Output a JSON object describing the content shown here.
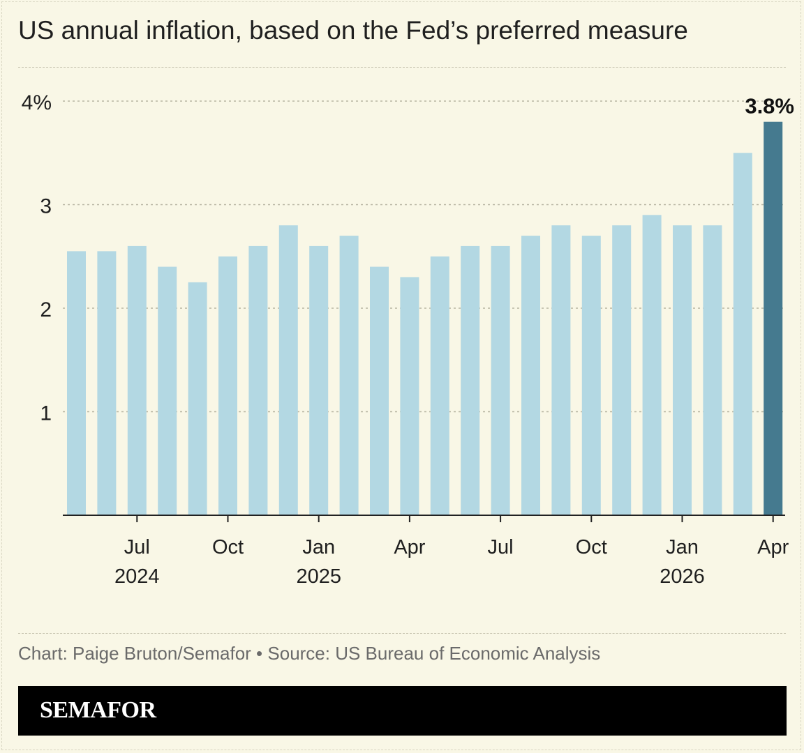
{
  "title": "US annual inflation, based on the Fed’s preferred measure",
  "credit": "Chart: Paige Bruton/Semafor • Source: US Bureau of Economic Analysis",
  "brand": "SEMAFOR",
  "colors": {
    "background": "#f9f7e6",
    "bar": "#b3d8e3",
    "bar_highlight": "#457a8f",
    "text": "#1f1f1f",
    "muted_text": "#6a6a6a",
    "gridline": "#b8b5a2"
  },
  "chart_data": {
    "type": "bar",
    "categories": [
      "May 2024",
      "Jun 2024",
      "Jul 2024",
      "Aug 2024",
      "Sep 2024",
      "Oct 2024",
      "Nov 2024",
      "Dec 2024",
      "Jan 2025",
      "Feb 2025",
      "Mar 2025",
      "Apr 2025",
      "May 2025",
      "Jun 2025",
      "Jul 2025",
      "Aug 2025",
      "Sep 2025",
      "Oct 2025",
      "Nov 2025",
      "Dec 2025",
      "Jan 2026",
      "Feb 2026",
      "Mar 2026",
      "Apr 2026"
    ],
    "values": [
      2.55,
      2.55,
      2.6,
      2.4,
      2.25,
      2.5,
      2.6,
      2.8,
      2.6,
      2.7,
      2.4,
      2.3,
      2.5,
      2.6,
      2.6,
      2.7,
      2.8,
      2.7,
      2.8,
      2.9,
      2.8,
      2.8,
      3.5,
      3.8
    ],
    "highlight_index": 23,
    "annotation": "3.8%",
    "ylim": [
      0,
      4
    ],
    "yticks": [
      {
        "value": 1,
        "label": "1"
      },
      {
        "value": 2,
        "label": "2"
      },
      {
        "value": 3,
        "label": "3"
      },
      {
        "value": 4,
        "label": "4%"
      }
    ],
    "xticks": [
      {
        "index": 2,
        "label": "Jul",
        "sublabel": "2024"
      },
      {
        "index": 5,
        "label": "Oct",
        "sublabel": ""
      },
      {
        "index": 8,
        "label": "Jan",
        "sublabel": "2025"
      },
      {
        "index": 11,
        "label": "Apr",
        "sublabel": ""
      },
      {
        "index": 14,
        "label": "Jul",
        "sublabel": ""
      },
      {
        "index": 17,
        "label": "Oct",
        "sublabel": ""
      },
      {
        "index": 20,
        "label": "Jan",
        "sublabel": "2026"
      },
      {
        "index": 23,
        "label": "Apr",
        "sublabel": ""
      }
    ],
    "grid": true,
    "xlabel": "",
    "ylabel": ""
  }
}
